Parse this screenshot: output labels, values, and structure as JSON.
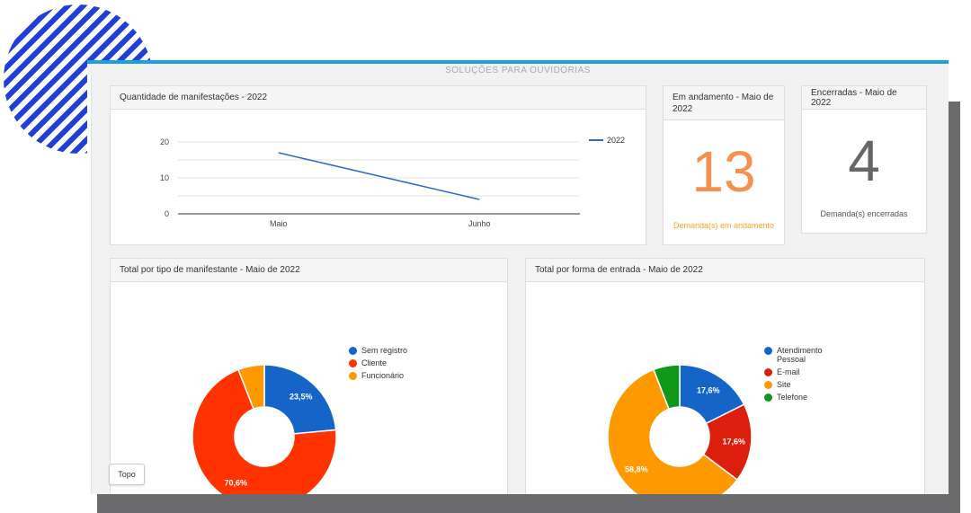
{
  "screen": {
    "title": "SOLUÇÕES PARA OUVIDORIAS"
  },
  "line_panel": {
    "title": "Quantidade de manifestações - 2022",
    "chart_data": {
      "type": "line",
      "x": [
        "Maio",
        "Junho"
      ],
      "series": [
        {
          "name": "2022",
          "values": [
            17,
            4
          ],
          "color": "#3366cc"
        }
      ],
      "yticks": [
        "0",
        "10",
        "20"
      ],
      "ylim": [
        0,
        20
      ],
      "legend": "right"
    }
  },
  "andamento": {
    "title": "Em andamento - Maio de 2022",
    "value": "13",
    "caption": "Demanda(s) em andamento",
    "color": "#f5904f",
    "caption_color": "#f5a623"
  },
  "encerradas": {
    "title": "Encerradas - Maio de 2022",
    "value": "4",
    "caption": "Demanda(s) encerradas",
    "color": "#666666"
  },
  "pie1": {
    "title": "Total por tipo de manifestante - Maio de 2022",
    "chart_data": {
      "type": "pie",
      "labels": [
        "Sem registro",
        "Cliente",
        "Funcionário"
      ],
      "values": [
        23.5,
        70.6,
        5.9
      ],
      "data_labels": [
        "23,5%",
        "70,6%",
        ""
      ],
      "colors": [
        "#1565c8",
        "#ff3300",
        "#ff9900"
      ],
      "legend": "right"
    }
  },
  "pie2": {
    "title": "Total por forma de entrada - Maio de 2022",
    "chart_data": {
      "type": "pie",
      "labels": [
        "Atendimento Pessoal",
        "E-mail",
        "Site",
        "Telefone"
      ],
      "values": [
        17.6,
        17.6,
        58.8,
        5.9
      ],
      "data_labels": [
        "17,6%",
        "17,6%",
        "58,8%",
        ""
      ],
      "colors": [
        "#1565c8",
        "#dc1f0c",
        "#ff9900",
        "#109618"
      ],
      "legend": "right"
    }
  },
  "topo_button": {
    "label": "Topo"
  }
}
